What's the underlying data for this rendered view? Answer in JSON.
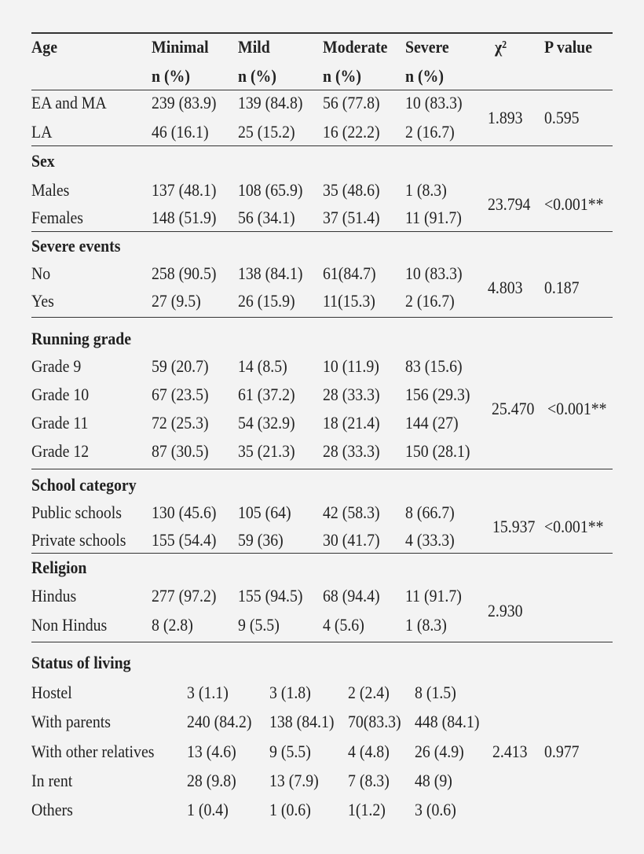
{
  "header": {
    "columns": [
      "Age",
      "Minimal",
      "Mild",
      "Moderate",
      "Severe",
      "χ²",
      "P value"
    ],
    "subheaders": [
      "n (%)",
      "n (%)",
      "n (%)",
      "n (%)"
    ]
  },
  "sections": [
    {
      "rows": [
        {
          "label": "EA and MA",
          "values": [
            "239 (83.9)",
            "139 (84.8)",
            "56 (77.8)",
            "10 (83.3)"
          ]
        },
        {
          "label": "LA",
          "values": [
            "46 (16.1)",
            "25 (15.2)",
            "16 (22.2)",
            "2 (16.7)"
          ]
        }
      ],
      "chi": "1.893",
      "p": "0.595"
    },
    {
      "title": "Sex",
      "rows": [
        {
          "label": "Males",
          "values": [
            "137 (48.1)",
            "108 (65.9)",
            "35 (48.6)",
            "1 (8.3)"
          ]
        },
        {
          "label": "Females",
          "values": [
            "148 (51.9)",
            "56 (34.1)",
            "37 (51.4)",
            "11 (91.7)"
          ]
        }
      ],
      "chi": "23.794",
      "p": "<0.001**"
    },
    {
      "title": "Severe events",
      "rows": [
        {
          "label": "No",
          "values": [
            "258 (90.5)",
            "138 (84.1)",
            "61(84.7)",
            "10 (83.3)"
          ]
        },
        {
          "label": "Yes",
          "values": [
            "27 (9.5)",
            "26 (15.9)",
            "11(15.3)",
            "2 (16.7)"
          ]
        }
      ],
      "chi": "4.803",
      "p": "0.187"
    },
    {
      "title": "Running grade",
      "rows": [
        {
          "label": "Grade 9",
          "values": [
            "59 (20.7)",
            "14 (8.5)",
            "10 (11.9)",
            "83 (15.6)"
          ]
        },
        {
          "label": "Grade 10",
          "values": [
            "67 (23.5)",
            "61 (37.2)",
            "28 (33.3)",
            "156 (29.3)"
          ]
        },
        {
          "label": "Grade 11",
          "values": [
            "72 (25.3)",
            "54 (32.9)",
            "18 (21.4)",
            "144 (27)"
          ]
        },
        {
          "label": "Grade 12",
          "values": [
            "87 (30.5)",
            "35 (21.3)",
            "28 (33.3)",
            "150 (28.1)"
          ]
        }
      ],
      "chi": "25.470",
      "p": "<0.001**"
    },
    {
      "title": "School category",
      "rows": [
        {
          "label": "Public schools",
          "values": [
            "130 (45.6)",
            "105 (64)",
            "42 (58.3)",
            "8 (66.7)"
          ]
        },
        {
          "label": "Private schools",
          "values": [
            "155 (54.4)",
            "59 (36)",
            "30 (41.7)",
            "4 (33.3)"
          ]
        }
      ],
      "chi": "15.937",
      "p": "<0.001**"
    },
    {
      "title": "Religion",
      "rows": [
        {
          "label": "Hindus",
          "values": [
            "277 (97.2)",
            "155 (94.5)",
            "68 (94.4)",
            "11 (91.7)"
          ]
        },
        {
          "label": "Non Hindus",
          "values": [
            "8 (2.8)",
            "9 (5.5)",
            "4 (5.6)",
            "1 (8.3)"
          ]
        }
      ],
      "chi": "2.930"
    },
    {
      "title": "Status of living",
      "rows": [
        {
          "label": "Hostel",
          "values": [
            "3 (1.1)",
            "3 (1.8)",
            "2 (2.4)",
            "8 (1.5)"
          ]
        },
        {
          "label": "With parents",
          "values": [
            "240 (84.2)",
            "138 (84.1)",
            "70(83.3)",
            "448 (84.1)"
          ]
        },
        {
          "label": "With other relatives",
          "values": [
            "13 (4.6)",
            "9 (5.5)",
            "4 (4.8)",
            "26 (4.9)"
          ]
        },
        {
          "label": "In rent",
          "values": [
            "28 (9.8)",
            "13 (7.9)",
            "7 (8.3)",
            "48 (9)"
          ]
        },
        {
          "label": "Others",
          "values": [
            "1 (0.4)",
            "1 (0.6)",
            "1(1.2)",
            "3 (0.6)"
          ]
        }
      ],
      "chi": "2.413",
      "p": "0.977"
    }
  ]
}
